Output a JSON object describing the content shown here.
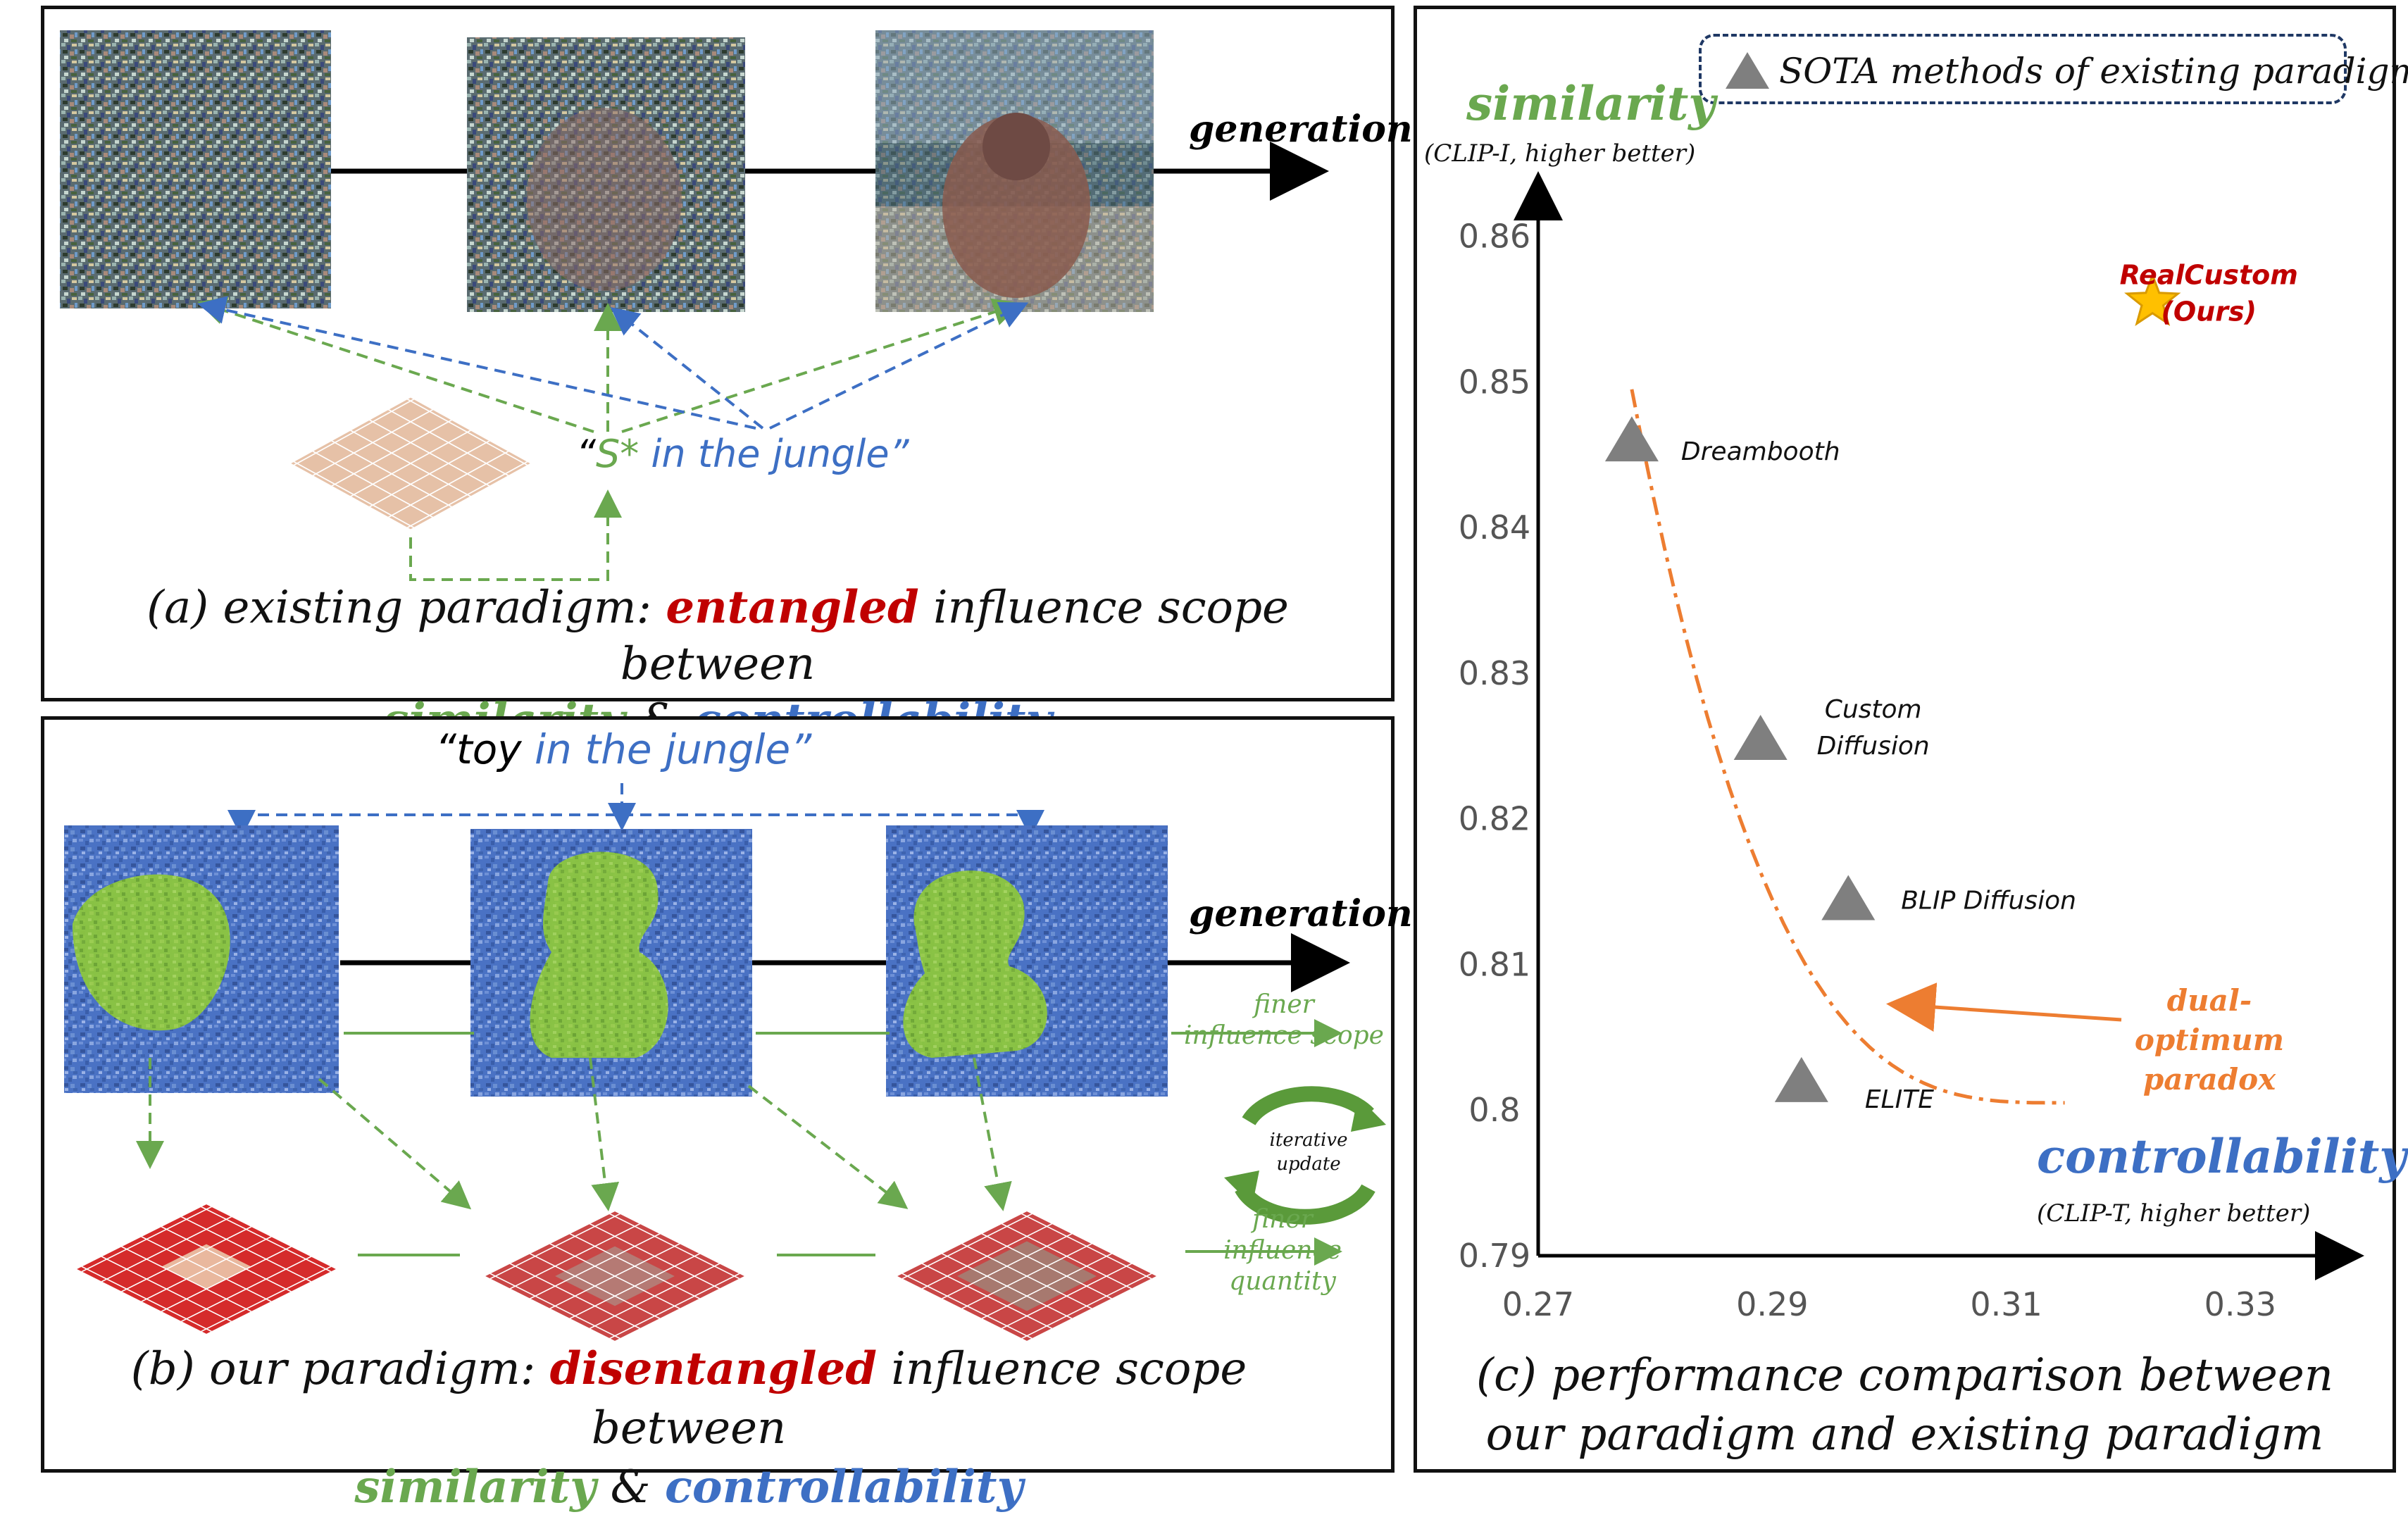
{
  "panel_a": {
    "generation_label": "generation",
    "prompt_quote_open": "“",
    "prompt_token": "S*",
    "prompt_rest": " in the jungle”",
    "caption_prefix": "(a)  existing paradigm: ",
    "caption_key": "entangled",
    "caption_suffix": " influence scope between",
    "caption_similarity": "similarity",
    "caption_amp": " & ",
    "caption_controllability": "controllability"
  },
  "panel_b": {
    "prompt_open": "“toy",
    "prompt_rest": " in the jungle”",
    "generation_label": "generation",
    "finer_scope_1": "finer",
    "finer_scope_2": "influence scope",
    "iterative_1": "iterative",
    "iterative_2": "update",
    "finer_quantity_1": "finer",
    "finer_quantity_2": "influence quantity",
    "caption_prefix": "(b) our paradigm: ",
    "caption_key": "disentangled",
    "caption_suffix": " influence scope between",
    "caption_similarity": "similarity",
    "caption_amp": " & ",
    "caption_controllability": "controllability"
  },
  "panel_c": {
    "legend_label": "SOTA methods of existing paradigm",
    "y_title": "similarity",
    "y_subtitle": "(CLIP-I, higher better)",
    "x_title": "controllability",
    "x_subtitle": "(CLIP-T, higher better)",
    "paradox_1": "dual-optimum",
    "paradox_2": "paradox",
    "caption_1": "(c) performance comparison between",
    "caption_2": "our paradigm and existing paradigm"
  },
  "chart_data": {
    "type": "scatter",
    "x_ticks": [
      "0.27",
      "0.29",
      "0.31",
      "0.33"
    ],
    "y_ticks": [
      "0.79",
      "0.8",
      "0.81",
      "0.82",
      "0.83",
      "0.84",
      "0.85",
      "0.86"
    ],
    "xlim": [
      0.27,
      0.34
    ],
    "ylim": [
      0.79,
      0.864
    ],
    "points": [
      {
        "label": "Dreambooth",
        "x": 0.278,
        "y": 0.846,
        "marker": "triangle"
      },
      {
        "label": "Custom\nDiffusion",
        "x": 0.289,
        "y": 0.8255,
        "marker": "triangle"
      },
      {
        "label": "BLIP Diffusion",
        "x": 0.2965,
        "y": 0.8145,
        "marker": "triangle"
      },
      {
        "label": "ELITE",
        "x": 0.2925,
        "y": 0.802,
        "marker": "triangle"
      },
      {
        "label": "RealCustom\n(Ours)",
        "x": 0.3225,
        "y": 0.8555,
        "marker": "star"
      }
    ],
    "colors": {
      "sota": "#7f7f7f",
      "ours_star": "#ffc000",
      "ours_label": "#c00000",
      "curve": "#ed7d31"
    }
  }
}
